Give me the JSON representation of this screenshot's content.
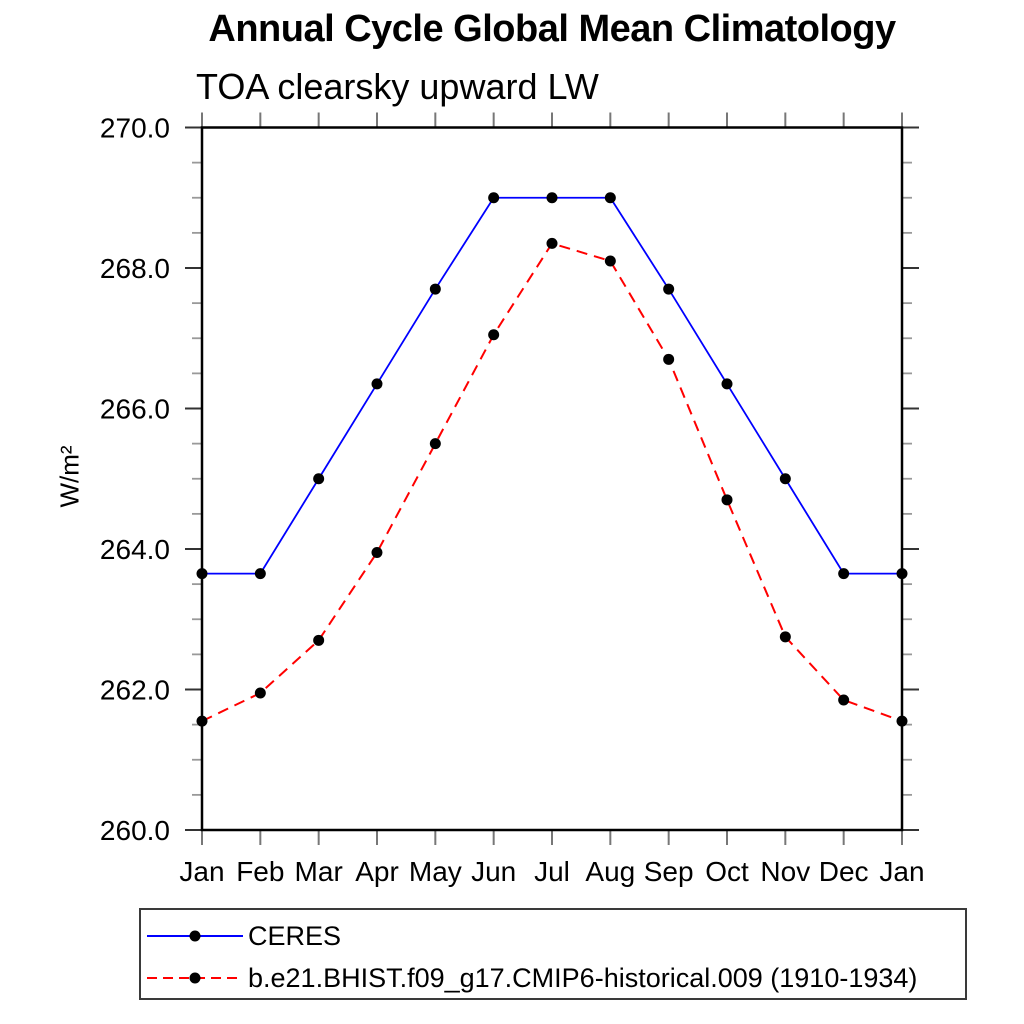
{
  "header": {
    "title": "Annual Cycle Global Mean Climatology",
    "subtitle": "TOA clearsky upward LW"
  },
  "chart_data": {
    "type": "line",
    "title": "Annual Cycle Global Mean Climatology",
    "subtitle": "TOA clearsky upward LW",
    "xlabel": "",
    "ylabel": "W/m²",
    "categories": [
      "Jan",
      "Feb",
      "Mar",
      "Apr",
      "May",
      "Jun",
      "Jul",
      "Aug",
      "Sep",
      "Oct",
      "Nov",
      "Dec",
      "Jan"
    ],
    "ylim": [
      260.0,
      270.0
    ],
    "y_major_step": 2.0,
    "y_minor_step": 0.5,
    "y_major_ticks": [
      270.0,
      268.0,
      266.0,
      264.0,
      262.0,
      260.0
    ],
    "y_tick_labels": [
      "270.0",
      "268.0",
      "266.0",
      "264.0",
      "262.0",
      "260.0"
    ],
    "grid": false,
    "legend_position": "bottom-left-box",
    "series": [
      {
        "name": "CERES",
        "color": "#0000ff",
        "line_style": "solid",
        "marker": "circle",
        "marker_color": "#000000",
        "values": [
          263.65,
          263.65,
          265.0,
          266.35,
          267.7,
          269.0,
          269.0,
          269.0,
          267.7,
          266.35,
          265.0,
          263.65,
          263.65
        ]
      },
      {
        "name": "b.e21.BHIST.f09_g17.CMIP6-historical.009 (1910-1934)",
        "color": "#ff0000",
        "line_style": "dashed",
        "marker": "circle",
        "marker_color": "#000000",
        "values": [
          261.55,
          261.95,
          262.7,
          263.95,
          265.5,
          267.05,
          268.35,
          268.1,
          266.7,
          264.7,
          262.75,
          261.85,
          261.55
        ]
      }
    ]
  },
  "colors": {
    "spine": "#000000",
    "major_tick": "#333333",
    "minor_tick": "#999999",
    "month_tick": "#777777",
    "background": "#ffffff"
  }
}
